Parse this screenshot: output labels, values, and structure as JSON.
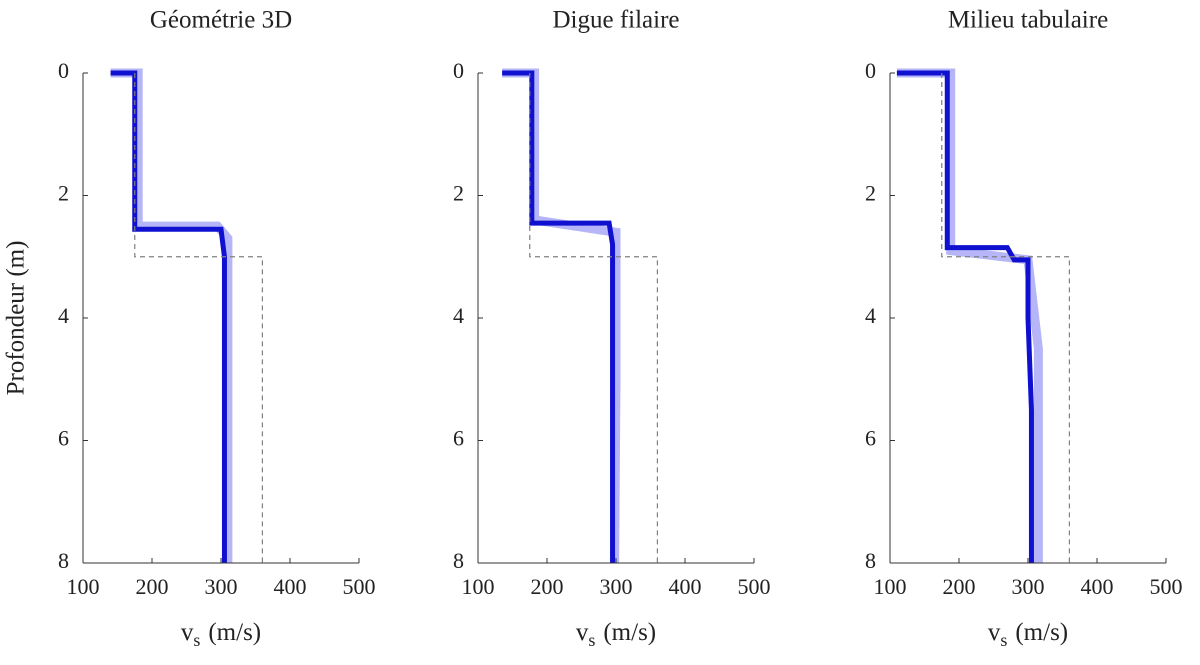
{
  "chart_data": [
    {
      "type": "line",
      "title": "Géométrie 3D",
      "ylabel": "Profondeur (m)",
      "xlabel": "v",
      "xlabel_sub": "s",
      "xlabel_unit": "(m/s)",
      "xlim": [
        100,
        500
      ],
      "xticks": [
        100,
        200,
        300,
        400,
        500
      ],
      "ylim": [
        0,
        8
      ],
      "yticks": [
        0,
        2,
        4,
        6,
        8
      ],
      "y_inverted": true,
      "series": [
        {
          "color": "#6b6bf0",
          "opacity": 0.5,
          "linewidth": 9,
          "linestyle": "solid",
          "x": [
            140,
            180,
            180,
            295,
            310,
            310
          ],
          "y": [
            0,
            0,
            2.5,
            2.5,
            2.7,
            8
          ]
        },
        {
          "color": "#1010d0",
          "opacity": 1,
          "linewidth": 5,
          "linestyle": "solid",
          "x": [
            140,
            175,
            175,
            300,
            305,
            305
          ],
          "y": [
            0,
            0,
            2.55,
            2.55,
            3,
            8
          ]
        },
        {
          "color": "#808080",
          "opacity": 1,
          "linewidth": 1.2,
          "linestyle": "dashed",
          "x": [
            175,
            175,
            360,
            360
          ],
          "y": [
            0,
            3,
            3,
            8
          ]
        }
      ]
    },
    {
      "type": "line",
      "title": "Digue filaire",
      "xlabel": "v",
      "xlabel_sub": "s",
      "xlabel_unit": "(m/s)",
      "xlim": [
        100,
        500
      ],
      "xticks": [
        100,
        200,
        300,
        400,
        500
      ],
      "ylim": [
        0,
        8
      ],
      "yticks": [
        0,
        2,
        4,
        6,
        8
      ],
      "y_inverted": true,
      "series": [
        {
          "color": "#6b6bf0",
          "opacity": 0.5,
          "linewidth": 9,
          "linestyle": "solid",
          "x": [
            135,
            182,
            182,
            300,
            300,
            298
          ],
          "y": [
            0,
            0,
            2.4,
            2.6,
            5,
            8
          ]
        },
        {
          "color": "#1010d0",
          "opacity": 1,
          "linewidth": 5,
          "linestyle": "solid",
          "x": [
            135,
            178,
            178,
            290,
            295,
            295
          ],
          "y": [
            0,
            0,
            2.45,
            2.45,
            2.8,
            8
          ]
        },
        {
          "color": "#808080",
          "opacity": 1,
          "linewidth": 1.2,
          "linestyle": "dashed",
          "x": [
            175,
            175,
            360,
            360
          ],
          "y": [
            0,
            3,
            3,
            8
          ]
        }
      ]
    },
    {
      "type": "line",
      "title": "Milieu tabulaire",
      "xlabel": "v",
      "xlabel_sub": "s",
      "xlabel_unit": "(m/s)",
      "xlim": [
        100,
        500
      ],
      "xticks": [
        100,
        200,
        300,
        400,
        500
      ],
      "ylim": [
        0,
        8
      ],
      "yticks": [
        0,
        2,
        4,
        6,
        8
      ],
      "y_inverted": true,
      "series": [
        {
          "color": "#6b6bf0",
          "opacity": 0.5,
          "linewidth": 9,
          "linestyle": "solid",
          "x": [
            110,
            188,
            188,
            300,
            315,
            315
          ],
          "y": [
            0,
            0,
            2.9,
            3.05,
            4.5,
            8
          ]
        },
        {
          "color": "#1010d0",
          "opacity": 1,
          "linewidth": 5,
          "linestyle": "solid",
          "x": [
            110,
            183,
            183,
            270,
            280,
            300,
            300,
            305,
            305
          ],
          "y": [
            0,
            0,
            2.85,
            2.85,
            3.05,
            3.05,
            4,
            5.5,
            8
          ]
        },
        {
          "color": "#808080",
          "opacity": 1,
          "linewidth": 1.2,
          "linestyle": "dashed",
          "x": [
            175,
            175,
            360,
            360
          ],
          "y": [
            0,
            3,
            3,
            8
          ]
        }
      ]
    }
  ]
}
